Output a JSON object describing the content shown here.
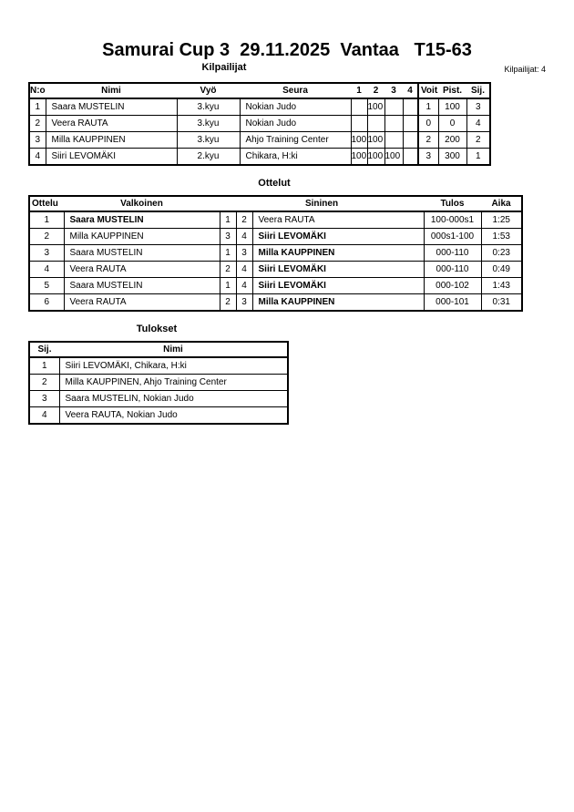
{
  "header": {
    "title": "Samurai Cup 3  29.11.2025  Vantaa   T15-63",
    "competitors_count_label": "Kilpailijat: 4"
  },
  "competitors": {
    "section_title": "Kilpailijat",
    "columns": [
      "N:o",
      "Nimi",
      "Vyö",
      "Seura",
      "1",
      "2",
      "3",
      "4",
      "Voit.",
      "Pist.",
      "Sij."
    ],
    "rows": [
      {
        "no": "1",
        "name": "Saara MUSTELIN",
        "belt": "3.kyu",
        "club": "Nokian Judo",
        "s1": "",
        "s2": "100",
        "s3": "",
        "s4": "",
        "wins": "1",
        "points": "100",
        "place": "3"
      },
      {
        "no": "2",
        "name": "Veera RAUTA",
        "belt": "3.kyu",
        "club": "Nokian Judo",
        "s1": "",
        "s2": "",
        "s3": "",
        "s4": "",
        "wins": "0",
        "points": "0",
        "place": "4"
      },
      {
        "no": "3",
        "name": "Milla KAUPPINEN",
        "belt": "3.kyu",
        "club": "Ahjo Training Center",
        "s1": "100",
        "s2": "100",
        "s3": "",
        "s4": "",
        "wins": "2",
        "points": "200",
        "place": "2"
      },
      {
        "no": "4",
        "name": "Siiri LEVOMÄKI",
        "belt": "2.kyu",
        "club": "Chikara, H:ki",
        "s1": "100",
        "s2": "100",
        "s3": "100",
        "s4": "",
        "wins": "3",
        "points": "300",
        "place": "1"
      }
    ]
  },
  "matches": {
    "section_title": "Ottelut",
    "columns": [
      "Ottelu",
      "Valkoinen",
      "Sininen",
      "Tulos",
      "Aika"
    ],
    "rows": [
      {
        "no": "1",
        "white": "Saara MUSTELIN",
        "white_no": "1",
        "blue_no": "2",
        "blue": "Veera RAUTA",
        "result": "100-000s1",
        "time": "1:25",
        "winner": "white"
      },
      {
        "no": "2",
        "white": "Milla KAUPPINEN",
        "white_no": "3",
        "blue_no": "4",
        "blue": "Siiri LEVOMÄKI",
        "result": "000s1-100",
        "time": "1:53",
        "winner": "blue"
      },
      {
        "no": "3",
        "white": "Saara MUSTELIN",
        "white_no": "1",
        "blue_no": "3",
        "blue": "Milla KAUPPINEN",
        "result": "000-110",
        "time": "0:23",
        "winner": "blue"
      },
      {
        "no": "4",
        "white": "Veera RAUTA",
        "white_no": "2",
        "blue_no": "4",
        "blue": "Siiri LEVOMÄKI",
        "result": "000-110",
        "time": "0:49",
        "winner": "blue"
      },
      {
        "no": "5",
        "white": "Saara MUSTELIN",
        "white_no": "1",
        "blue_no": "4",
        "blue": "Siiri LEVOMÄKI",
        "result": "000-102",
        "time": "1:43",
        "winner": "blue"
      },
      {
        "no": "6",
        "white": "Veera RAUTA",
        "white_no": "2",
        "blue_no": "3",
        "blue": "Milla KAUPPINEN",
        "result": "000-101",
        "time": "0:31",
        "winner": "blue"
      }
    ]
  },
  "results": {
    "section_title": "Tulokset",
    "columns": [
      "Sij.",
      "Nimi"
    ],
    "rows": [
      {
        "place": "1",
        "name": "Siiri LEVOMÄKI, Chikara, H:ki"
      },
      {
        "place": "2",
        "name": "Milla KAUPPINEN, Ahjo Training Center"
      },
      {
        "place": "3",
        "name": "Saara MUSTELIN, Nokian Judo"
      },
      {
        "place": "4",
        "name": "Veera RAUTA, Nokian Judo"
      }
    ]
  }
}
